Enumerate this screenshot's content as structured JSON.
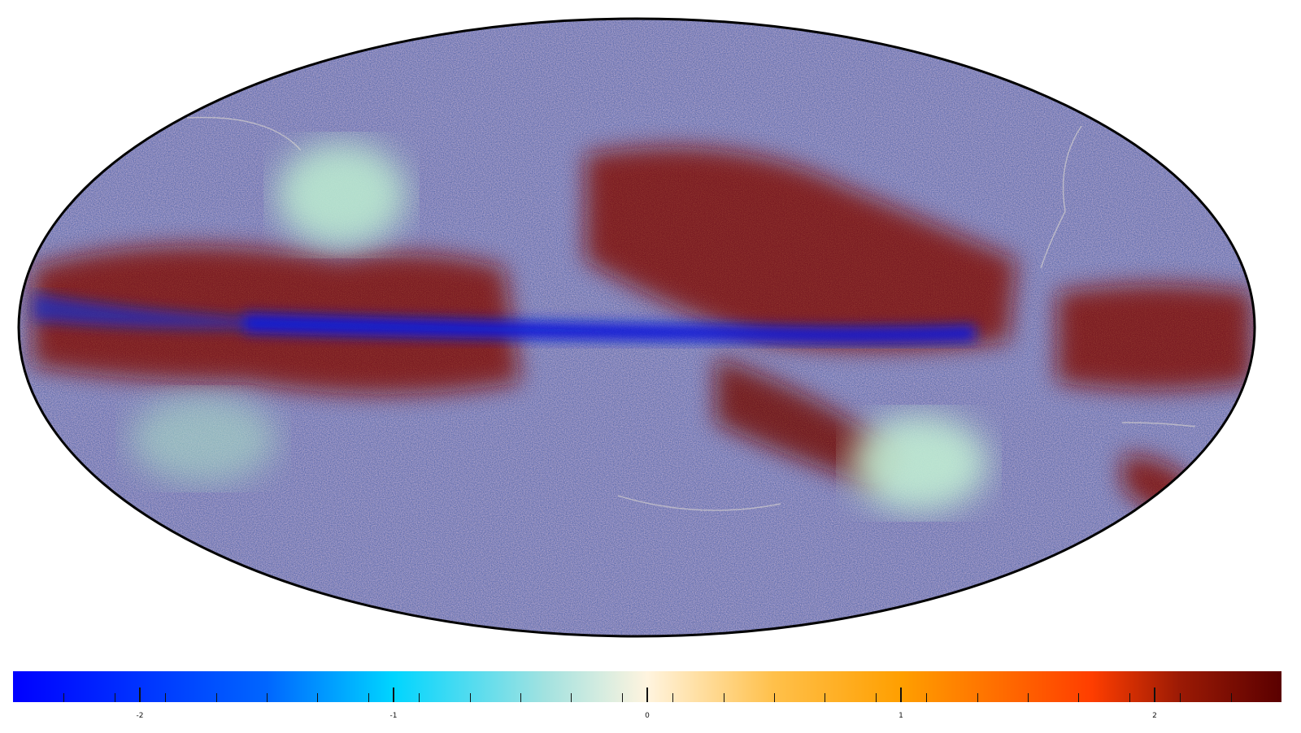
{
  "map": {
    "projection": "mollweide",
    "background_color": "#ffffff",
    "outline_color": "#000000",
    "features": [
      {
        "name": "galactic-plane-band",
        "kind": "band",
        "color": "#0a1ad8"
      },
      {
        "name": "north-bright-region",
        "kind": "patch",
        "color": "#a9e0c8"
      },
      {
        "name": "south-bright-region",
        "kind": "patch",
        "color": "#b3e6cf"
      },
      {
        "name": "mid-latitude-dark-red",
        "kind": "region",
        "color": "#7a0a0a"
      }
    ]
  },
  "colorbar": {
    "min": -2.5,
    "max": 2.5,
    "ticks": [
      {
        "value": -2,
        "label": "-2"
      },
      {
        "value": -1,
        "label": "-1"
      },
      {
        "value": 0,
        "label": "0"
      },
      {
        "value": 1,
        "label": "1"
      },
      {
        "value": 2,
        "label": "2"
      }
    ],
    "minor_step": 0.2,
    "stops": [
      {
        "pos": 0.0,
        "color": "#0000ff"
      },
      {
        "pos": 0.2,
        "color": "#0066ff"
      },
      {
        "pos": 0.3,
        "color": "#00d5ff"
      },
      {
        "pos": 0.42,
        "color": "#a3e2e0"
      },
      {
        "pos": 0.5,
        "color": "#fff4df"
      },
      {
        "pos": 0.6,
        "color": "#ffc04a"
      },
      {
        "pos": 0.7,
        "color": "#ff9f00"
      },
      {
        "pos": 0.85,
        "color": "#ff3e00"
      },
      {
        "pos": 0.92,
        "color": "#9b1a05"
      },
      {
        "pos": 1.0,
        "color": "#5a0000"
      }
    ]
  }
}
